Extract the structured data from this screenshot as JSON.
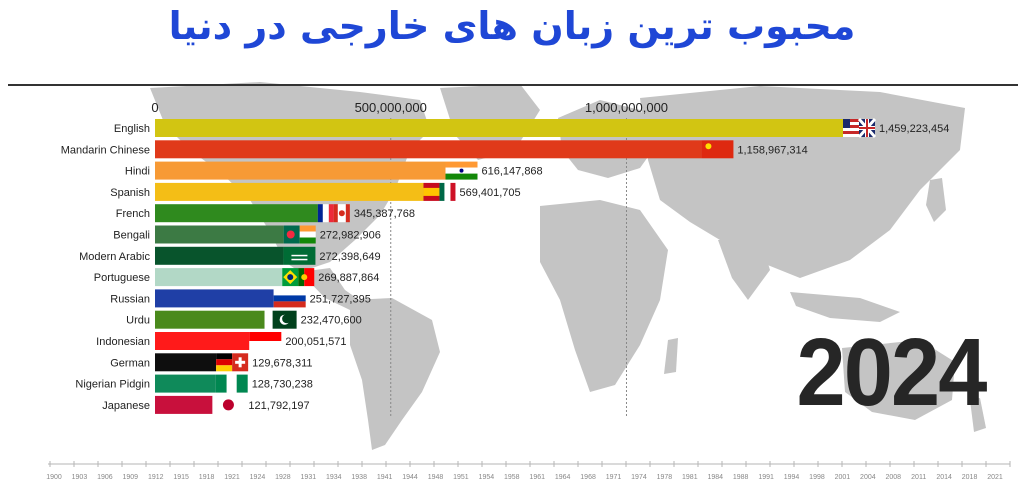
{
  "title": "محبوب ترین زبان های خارجی در دنیا",
  "year": "2024",
  "colors": {
    "title": "#1f47d6",
    "map": "#c4c4c4"
  },
  "chart_data": {
    "type": "bar",
    "orientation": "horizontal",
    "title": "محبوب ترین زبان های خارجی در دنیا",
    "xlabel": "",
    "ylabel": "",
    "xlim": [
      0,
      1459223454
    ],
    "x_ticks": [
      {
        "value": 0,
        "label": "0"
      },
      {
        "value": 500000000,
        "label": "500,000,000"
      },
      {
        "value": 1000000000,
        "label": "1,000,000,000"
      }
    ],
    "categories": [
      "English",
      "Mandarin Chinese",
      "Hindi",
      "Spanish",
      "French",
      "Bengali",
      "Modern Arabic",
      "Portuguese",
      "Russian",
      "Urdu",
      "Indonesian",
      "German",
      "Nigerian Pidgin",
      "Japanese"
    ],
    "values": [
      1459223454,
      1158967314,
      616147868,
      569401705,
      345387768,
      272982906,
      272398649,
      269887864,
      251727395,
      232470600,
      200051571,
      129678311,
      128730238,
      121792197
    ],
    "value_labels": [
      "1,459,223,454",
      "1,158,967,314",
      "616,147,868",
      "569,401,705",
      "345,387,768",
      "272,982,906",
      "272,398,649",
      "269,887,864",
      "251,727,395",
      "232,470,600",
      "200,051,571",
      "129,678,311",
      "128,730,238",
      "121,792,197"
    ],
    "bar_colors": [
      "#d2c512",
      "#e03a1a",
      "#f79a35",
      "#f4be16",
      "#2f8a1e",
      "#3c7a44",
      "#08542c",
      "#b2d8c6",
      "#1f3fa6",
      "#4a8a1c",
      "#ff1a1a",
      "#0e0e0e",
      "#0f8a5a",
      "#c8103c"
    ],
    "flags": [
      "us-uk",
      "china",
      "india",
      "spain-mexico",
      "france-canada",
      "bangladesh-india",
      "saudi-arabia",
      "brazil-portugal",
      "russia",
      "pakistan",
      "indonesia",
      "germany-switzerland",
      "nigeria",
      "japan"
    ],
    "gridlines": true
  },
  "timeline": {
    "labels": [
      "1900",
      "1903",
      "1906",
      "1909",
      "1912",
      "1915",
      "1918",
      "1921",
      "1924",
      "1928",
      "1931",
      "1934",
      "1938",
      "1941",
      "1944",
      "1948",
      "1951",
      "1954",
      "1958",
      "1961",
      "1964",
      "1968",
      "1971",
      "1974",
      "1978",
      "1981",
      "1984",
      "1988",
      "1991",
      "1994",
      "1998",
      "2001",
      "2004",
      "2008",
      "2011",
      "2014",
      "2018",
      "2021"
    ]
  }
}
